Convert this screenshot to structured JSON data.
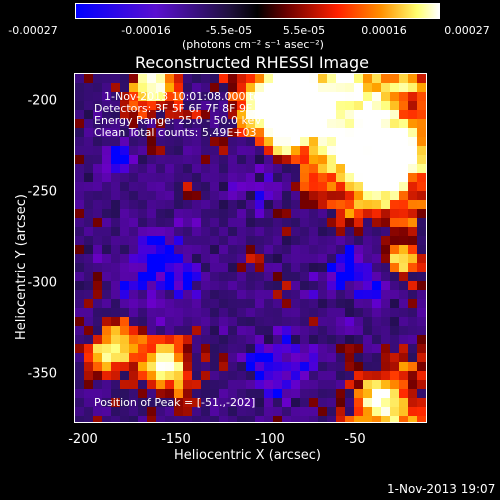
{
  "colorbar": {
    "ticks": [
      "-0.00027",
      "-0.00016",
      "-5.5e-05",
      "5.5e-05",
      "0.00016",
      "0.00027"
    ],
    "units": "(photons cm⁻² s⁻¹ asec⁻²)",
    "colors": [
      "#0000ff",
      "#6a00c8",
      "#2a1060",
      "#000000",
      "#7a0000",
      "#ff2a00",
      "#ffaa00",
      "#ffff80",
      "#ffffff"
    ]
  },
  "title": "Reconstructed RHESSI Image",
  "info": {
    "time_range": "1-Nov-2013 10:01:08.000 to 10:03:48.000",
    "detectors": "Detectors: 3F 5F 6F 7F 8F 9F, Att 0",
    "energy": "Energy Range: 25.0 - 50.0 keV",
    "clean": "Clean     Total counts: 5.49E+03",
    "peak": "Position of Peak = [-51.,-202]"
  },
  "axes": {
    "x_label": "Heliocentric X (arcsec)",
    "y_label": "Heliocentric Y (arcsec)",
    "x_ticks": [
      "-200",
      "-150",
      "-100",
      "-50"
    ],
    "y_ticks": [
      "-200",
      "-250",
      "-300",
      "-350"
    ]
  },
  "footer_timestamp": "1-Nov-2013 19:07"
}
